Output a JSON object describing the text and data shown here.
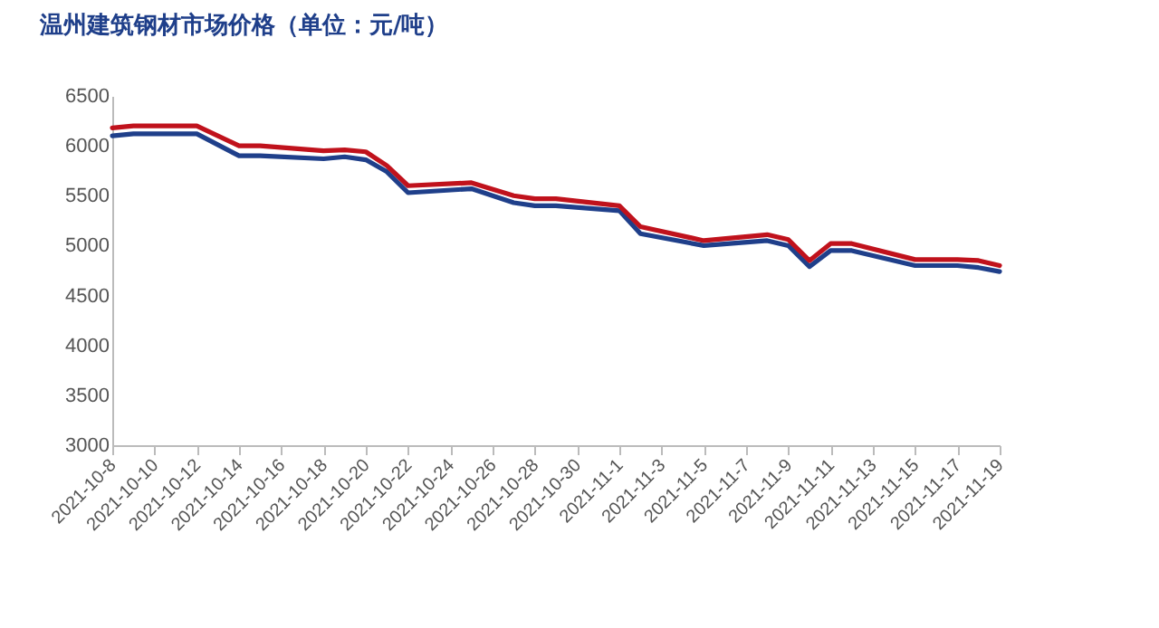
{
  "chart_data": {
    "type": "line",
    "title": "温州建筑钢材市场价格（单位：元/吨）",
    "x": [
      "2021-10-08",
      "2021-10-09",
      "2021-10-12",
      "2021-10-14",
      "2021-10-15",
      "2021-10-18",
      "2021-10-19",
      "2021-10-20",
      "2021-10-21",
      "2021-10-22",
      "2021-10-25",
      "2021-10-27",
      "2021-10-28",
      "2021-10-29",
      "2021-11-01",
      "2021-11-02",
      "2021-11-05",
      "2021-11-08",
      "2021-11-09",
      "2021-11-10",
      "2021-11-11",
      "2021-11-12",
      "2021-11-15",
      "2021-11-17",
      "2021-11-18",
      "2021-11-19"
    ],
    "series": [
      {
        "color": "#1f3f8a",
        "values": [
          6100,
          6120,
          6120,
          5900,
          5900,
          5870,
          5890,
          5860,
          5740,
          5530,
          5570,
          5430,
          5400,
          5400,
          5350,
          5120,
          5000,
          5050,
          5000,
          4790,
          4950,
          4950,
          4800,
          4800,
          4780,
          4740
        ]
      },
      {
        "color": "#c0121c",
        "values": [
          6180,
          6200,
          6200,
          6000,
          6000,
          5950,
          5960,
          5940,
          5800,
          5600,
          5630,
          5500,
          5470,
          5470,
          5400,
          5190,
          5050,
          5110,
          5060,
          4850,
          5020,
          5020,
          4860,
          4860,
          4850,
          4800
        ]
      }
    ],
    "xlim": [
      "2021-10-08",
      "2021-11-19"
    ],
    "xticks": [
      {
        "value": "2021-10-08",
        "label": "2021-10-8"
      },
      {
        "value": "2021-10-10",
        "label": "2021-10-10"
      },
      {
        "value": "2021-10-12",
        "label": "2021-10-12"
      },
      {
        "value": "2021-10-14",
        "label": "2021-10-14"
      },
      {
        "value": "2021-10-16",
        "label": "2021-10-16"
      },
      {
        "value": "2021-10-18",
        "label": "2021-10-18"
      },
      {
        "value": "2021-10-20",
        "label": "2021-10-20"
      },
      {
        "value": "2021-10-22",
        "label": "2021-10-22"
      },
      {
        "value": "2021-10-24",
        "label": "2021-10-24"
      },
      {
        "value": "2021-10-26",
        "label": "2021-10-26"
      },
      {
        "value": "2021-10-28",
        "label": "2021-10-28"
      },
      {
        "value": "2021-10-30",
        "label": "2021-10-30"
      },
      {
        "value": "2021-11-01",
        "label": "2021-11-1"
      },
      {
        "value": "2021-11-03",
        "label": "2021-11-3"
      },
      {
        "value": "2021-11-05",
        "label": "2021-11-5"
      },
      {
        "value": "2021-11-07",
        "label": "2021-11-7"
      },
      {
        "value": "2021-11-09",
        "label": "2021-11-9"
      },
      {
        "value": "2021-11-11",
        "label": "2021-11-11"
      },
      {
        "value": "2021-11-13",
        "label": "2021-11-13"
      },
      {
        "value": "2021-11-15",
        "label": "2021-11-15"
      },
      {
        "value": "2021-11-17",
        "label": "2021-11-17"
      },
      {
        "value": "2021-11-19",
        "label": "2021-11-19"
      }
    ],
    "ylim": [
      3000,
      6500
    ],
    "yticks": [
      3000,
      3500,
      4000,
      4500,
      5000,
      5500,
      6000,
      6500
    ],
    "grid": false,
    "marker": "none",
    "line_style": "solid"
  }
}
